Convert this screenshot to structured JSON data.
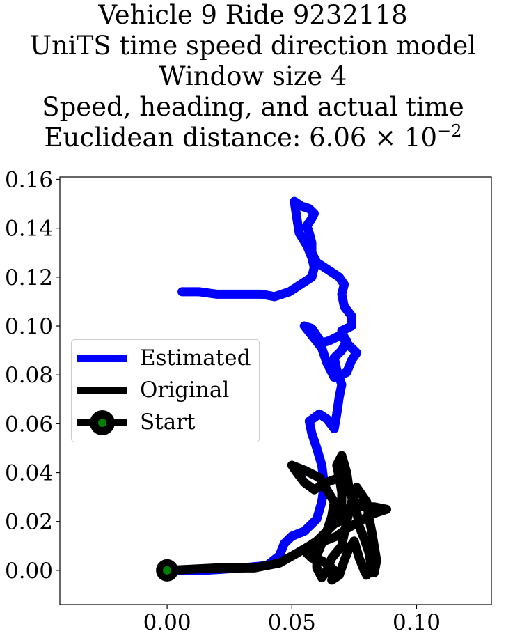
{
  "title": {
    "line1": "Vehicle 9 Ride 9232118",
    "line2": "UniTS time speed direction model",
    "line3": "Window size 4",
    "line4": "Speed, heading, and actual time",
    "line5_prefix": "Euclidean distance: 6.06 × 10",
    "line5_exp": "−2"
  },
  "chart_data": {
    "type": "line",
    "xlim": [
      -0.043,
      0.13
    ],
    "ylim": [
      -0.014,
      0.161
    ],
    "xticks": [
      0.0,
      0.05,
      0.1
    ],
    "xtick_labels": [
      "0.00",
      "0.05",
      "0.10"
    ],
    "yticks": [
      0.0,
      0.02,
      0.04,
      0.06,
      0.08,
      0.1,
      0.12,
      0.14,
      0.16
    ],
    "ytick_labels": [
      "0.00",
      "0.02",
      "0.04",
      "0.06",
      "0.08",
      "0.10",
      "0.12",
      "0.14",
      "0.16"
    ],
    "grid": false,
    "legend_position": "center-left",
    "series": [
      {
        "name": "Estimated",
        "color": "#0000ff",
        "points": [
          [
            0.0,
            0.0
          ],
          [
            0.015,
            0.0
          ],
          [
            0.03,
            0.001
          ],
          [
            0.04,
            0.002
          ],
          [
            0.045,
            0.006
          ],
          [
            0.047,
            0.011
          ],
          [
            0.05,
            0.014
          ],
          [
            0.055,
            0.016
          ],
          [
            0.058,
            0.019
          ],
          [
            0.06,
            0.021
          ],
          [
            0.062,
            0.028
          ],
          [
            0.063,
            0.035
          ],
          [
            0.062,
            0.043
          ],
          [
            0.06,
            0.05
          ],
          [
            0.058,
            0.056
          ],
          [
            0.057,
            0.061
          ],
          [
            0.061,
            0.064
          ],
          [
            0.064,
            0.062
          ],
          [
            0.067,
            0.058
          ],
          [
            0.068,
            0.064
          ],
          [
            0.069,
            0.071
          ],
          [
            0.07,
            0.076
          ],
          [
            0.068,
            0.082
          ],
          [
            0.067,
            0.087
          ],
          [
            0.07,
            0.09
          ],
          [
            0.072,
            0.094
          ],
          [
            0.069,
            0.096
          ],
          [
            0.065,
            0.094
          ],
          [
            0.062,
            0.093
          ],
          [
            0.06,
            0.096
          ],
          [
            0.058,
            0.099
          ],
          [
            0.055,
            0.1
          ],
          [
            0.062,
            0.091
          ],
          [
            0.064,
            0.085
          ],
          [
            0.067,
            0.079
          ],
          [
            0.072,
            0.081
          ],
          [
            0.074,
            0.086
          ],
          [
            0.076,
            0.089
          ],
          [
            0.072,
            0.093
          ],
          [
            0.07,
            0.098
          ],
          [
            0.074,
            0.1
          ],
          [
            0.074,
            0.104
          ],
          [
            0.071,
            0.108
          ],
          [
            0.07,
            0.113
          ],
          [
            0.071,
            0.117
          ],
          [
            0.069,
            0.12
          ],
          [
            0.066,
            0.122
          ],
          [
            0.063,
            0.124
          ],
          [
            0.06,
            0.126
          ],
          [
            0.058,
            0.13
          ],
          [
            0.058,
            0.134
          ],
          [
            0.057,
            0.138
          ],
          [
            0.056,
            0.141
          ],
          [
            0.058,
            0.144
          ],
          [
            0.059,
            0.146
          ],
          [
            0.057,
            0.148
          ],
          [
            0.054,
            0.149
          ],
          [
            0.051,
            0.151
          ],
          [
            0.052,
            0.144
          ],
          [
            0.053,
            0.138
          ],
          [
            0.056,
            0.133
          ],
          [
            0.058,
            0.128
          ],
          [
            0.059,
            0.124
          ],
          [
            0.058,
            0.12
          ],
          [
            0.055,
            0.118
          ],
          [
            0.052,
            0.116
          ],
          [
            0.049,
            0.114
          ],
          [
            0.046,
            0.113
          ],
          [
            0.043,
            0.112
          ],
          [
            0.038,
            0.113
          ],
          [
            0.033,
            0.113
          ],
          [
            0.027,
            0.113
          ],
          [
            0.02,
            0.113
          ],
          [
            0.013,
            0.114
          ],
          [
            0.006,
            0.114
          ]
        ]
      },
      {
        "name": "Original",
        "color": "#000000",
        "points": [
          [
            0.0,
            0.0
          ],
          [
            0.02,
            0.001
          ],
          [
            0.035,
            0.001
          ],
          [
            0.045,
            0.003
          ],
          [
            0.052,
            0.007
          ],
          [
            0.057,
            0.01
          ],
          [
            0.06,
            0.012
          ],
          [
            0.064,
            0.016
          ],
          [
            0.067,
            0.019
          ],
          [
            0.069,
            0.02
          ],
          [
            0.07,
            0.026
          ],
          [
            0.07,
            0.032
          ],
          [
            0.069,
            0.038
          ],
          [
            0.068,
            0.043
          ],
          [
            0.07,
            0.047
          ],
          [
            0.072,
            0.04
          ],
          [
            0.073,
            0.033
          ],
          [
            0.075,
            0.028
          ],
          [
            0.079,
            0.026
          ],
          [
            0.083,
            0.026
          ],
          [
            0.088,
            0.025
          ],
          [
            0.082,
            0.023
          ],
          [
            0.077,
            0.02
          ],
          [
            0.072,
            0.017
          ],
          [
            0.068,
            0.014
          ],
          [
            0.063,
            0.012
          ],
          [
            0.058,
            0.01
          ],
          [
            0.056,
            0.007
          ],
          [
            0.058,
            0.005
          ],
          [
            0.062,
            0.004
          ],
          [
            0.065,
            0.002
          ],
          [
            0.067,
            0.0
          ],
          [
            0.066,
            -0.004
          ],
          [
            0.069,
            -0.002
          ],
          [
            0.071,
            0.004
          ],
          [
            0.073,
            0.009
          ],
          [
            0.075,
            0.012
          ],
          [
            0.077,
            0.005
          ],
          [
            0.079,
            0.0
          ],
          [
            0.08,
            -0.002
          ],
          [
            0.082,
            0.0
          ],
          [
            0.081,
            0.007
          ],
          [
            0.079,
            0.013
          ],
          [
            0.077,
            0.018
          ],
          [
            0.076,
            0.024
          ],
          [
            0.074,
            0.03
          ],
          [
            0.072,
            0.035
          ],
          [
            0.069,
            0.038
          ],
          [
            0.064,
            0.036
          ],
          [
            0.059,
            0.033
          ],
          [
            0.055,
            0.036
          ],
          [
            0.052,
            0.04
          ],
          [
            0.05,
            0.043
          ],
          [
            0.055,
            0.041
          ],
          [
            0.061,
            0.038
          ],
          [
            0.064,
            0.033
          ],
          [
            0.067,
            0.028
          ],
          [
            0.066,
            0.022
          ],
          [
            0.064,
            0.016
          ],
          [
            0.062,
            0.011
          ],
          [
            0.06,
            0.006
          ],
          [
            0.06,
            0.001
          ],
          [
            0.062,
            -0.003
          ],
          [
            0.064,
            0.0
          ],
          [
            0.066,
            0.005
          ],
          [
            0.07,
            0.01
          ],
          [
            0.072,
            0.02
          ],
          [
            0.074,
            0.028
          ],
          [
            0.076,
            0.034
          ],
          [
            0.078,
            0.031
          ],
          [
            0.08,
            0.028
          ],
          [
            0.081,
            0.021
          ],
          [
            0.082,
            0.016
          ],
          [
            0.083,
            0.01
          ],
          [
            0.084,
            0.004
          ],
          [
            0.083,
            -0.001
          ]
        ]
      }
    ],
    "start_point": {
      "name": "Start",
      "x": 0.0,
      "y": 0.0,
      "outer_color": "#000000",
      "inner_color": "#008000"
    }
  }
}
